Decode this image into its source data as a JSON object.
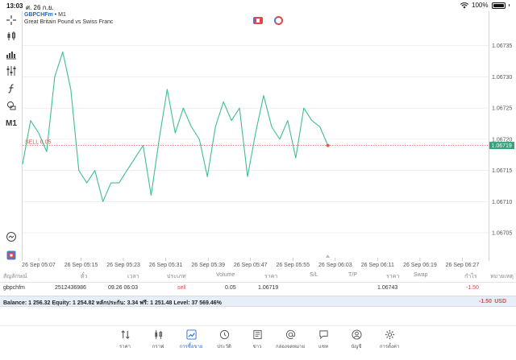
{
  "status_bar": {
    "time": "13:03",
    "date": "ศ. 26 ก.ย.",
    "battery": "100%"
  },
  "toolbar": {
    "timeframe": "M1"
  },
  "chart": {
    "symbol": "GBPCHFm",
    "timeframe_suffix": " • M1",
    "description": "Great Britain Pound vs Swiss Franc",
    "sell_label": "SELL 0.05",
    "current_price_label": "1.06719",
    "colors": {
      "line": "#3fbf8f",
      "sell": "#e25a50",
      "price_box": "#2aa57c",
      "grid": "#e6e6e6"
    }
  },
  "chart_data": {
    "type": "line",
    "price_ticks": [
      "1.06735",
      "1.06730",
      "1.06725",
      "1.06720",
      "1.06715",
      "1.06710",
      "1.06705"
    ],
    "time_ticks": [
      "26 Sep 05:07",
      "26 Sep 05:15",
      "26 Sep 05:23",
      "26 Sep 05:31",
      "26 Sep 05:39",
      "26 Sep 05:47",
      "26 Sep 05:55",
      "26 Sep 06:03",
      "26 Sep 06:11",
      "26 Sep 06:19",
      "26 Sep 06:27"
    ],
    "ylim": [
      1.06701,
      1.0674
    ],
    "xlim": [
      0,
      58
    ],
    "sell_level": 1.06719,
    "series": [
      {
        "x": [
          0,
          1,
          2,
          3,
          4,
          5,
          6,
          7,
          8,
          9,
          10,
          11,
          12,
          13,
          14,
          15,
          16,
          17,
          18,
          19,
          20,
          21,
          22,
          23,
          24,
          25,
          26,
          27,
          28,
          29,
          30,
          31,
          32,
          33,
          34,
          35,
          36,
          37,
          38
        ],
        "values": [
          1.06716,
          1.06723,
          1.06721,
          1.06718,
          1.0673,
          1.06734,
          1.06728,
          1.06715,
          1.06713,
          1.06715,
          1.0671,
          1.06713,
          1.06713,
          1.06715,
          1.06717,
          1.06719,
          1.06711,
          1.0672,
          1.06728,
          1.06721,
          1.06725,
          1.06722,
          1.0672,
          1.06714,
          1.06722,
          1.06726,
          1.06723,
          1.06725,
          1.06714,
          1.06721,
          1.06727,
          1.06722,
          1.0672,
          1.06723,
          1.06717,
          1.06725,
          1.06723,
          1.06722,
          1.06719
        ]
      }
    ],
    "grid": true
  },
  "trade": {
    "headers": {
      "symbol": "สัญลักษณ์",
      "ticket": "ตั๋ว",
      "time": "เวลา",
      "type": "ประเภท",
      "volume": "Volume",
      "price": "ราคา",
      "sl": "S/L",
      "tp": "T/P",
      "current_price": "ราคา",
      "swap": "Swap",
      "profit": "กำไร",
      "comment": "หมายเหตุ"
    },
    "row": {
      "symbol": "gbpchfm",
      "ticket": "2512436986",
      "time": "09.26 06:03",
      "type": "sell",
      "volume": "0.05",
      "price": "1.06719",
      "sl": "",
      "tp": "",
      "current_price": "1.06743",
      "swap": "",
      "profit": "-1.50",
      "comment": ""
    }
  },
  "balance": {
    "text": "Balance: 1 256.32 Equity: 1 254.82 หลักประกัน: 3.34 ฟรี: 1 251.48 Level: 37 569.46%",
    "profit": "-1.50",
    "currency": "USD"
  },
  "tabs": [
    {
      "label": "ราคา",
      "icon": "quotes-icon"
    },
    {
      "label": "กราฟ",
      "icon": "chart-candles-icon"
    },
    {
      "label": "การซื้อขาย",
      "icon": "trade-icon",
      "active": true
    },
    {
      "label": "ประวัติ",
      "icon": "history-icon"
    },
    {
      "label": "ข่าว",
      "icon": "news-icon"
    },
    {
      "label": "กล่องจดหมาย",
      "icon": "mailbox-icon"
    },
    {
      "label": "แชท",
      "icon": "chat-icon"
    },
    {
      "label": "บัญชี",
      "icon": "account-icon"
    },
    {
      "label": "การตั้งค่า",
      "icon": "settings-icon"
    }
  ]
}
